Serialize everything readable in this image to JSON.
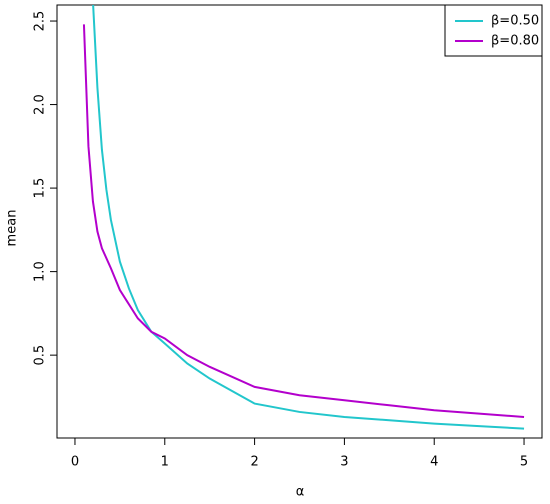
{
  "chart_data": {
    "type": "line",
    "x_label": "α",
    "y_label": "mean",
    "xlim": [
      -0.2,
      5.2
    ],
    "ylim": [
      0.004,
      2.596
    ],
    "xticks": [
      0,
      1,
      2,
      3,
      4,
      5
    ],
    "yticks": [
      0.5,
      1.0,
      1.5,
      2.0,
      2.5
    ],
    "legend": "top-right",
    "series": [
      {
        "name": "β=0.50",
        "color": "#22c6cc",
        "x": [
          0.2,
          0.25,
          0.3,
          0.35,
          0.4,
          0.5,
          0.6,
          0.7,
          0.85,
          1,
          1.25,
          1.5,
          2,
          2.5,
          3,
          3.5,
          4,
          4.5,
          5
        ],
        "values": [
          2.62,
          2.1,
          1.73,
          1.49,
          1.31,
          1.06,
          0.9,
          0.77,
          0.64,
          0.57,
          0.45,
          0.36,
          0.21,
          0.16,
          0.13,
          0.11,
          0.09,
          0.075,
          0.06
        ]
      },
      {
        "name": "β=0.80",
        "color": "#b300cc",
        "x": [
          0.1,
          0.15,
          0.2,
          0.25,
          0.3,
          0.4,
          0.5,
          0.7,
          0.85,
          1,
          1.25,
          1.5,
          2,
          2.5,
          3,
          3.5,
          4,
          4.5,
          5
        ],
        "values": [
          2.48,
          1.75,
          1.42,
          1.24,
          1.14,
          1.02,
          0.89,
          0.72,
          0.64,
          0.6,
          0.5,
          0.43,
          0.31,
          0.26,
          0.23,
          0.2,
          0.17,
          0.15,
          0.13
        ]
      }
    ]
  }
}
